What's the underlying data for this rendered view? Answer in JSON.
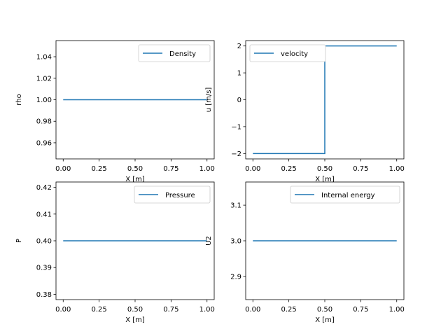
{
  "chart_data": [
    {
      "type": "line",
      "ylabel": "rho",
      "xlabel": "X [m]",
      "xlim": [
        -0.05,
        1.05
      ],
      "ylim": [
        0.945,
        1.055
      ],
      "xticks": [
        0.0,
        0.25,
        0.5,
        0.75,
        1.0
      ],
      "xtick_labels": [
        "0.00",
        "0.25",
        "0.50",
        "0.75",
        "1.00"
      ],
      "yticks": [
        0.96,
        0.98,
        1.0,
        1.02,
        1.04
      ],
      "ytick_labels": [
        "0.96",
        "0.98",
        "1.00",
        "1.02",
        "1.04"
      ],
      "legend_position": "upper right",
      "series": [
        {
          "name": "Density",
          "color": "#1f77b4",
          "x": [
            0.0,
            1.0
          ],
          "y": [
            1.0,
            1.0
          ]
        }
      ]
    },
    {
      "type": "line",
      "ylabel": "u [m/s]",
      "xlabel": "X [m]",
      "xlim": [
        -0.05,
        1.05
      ],
      "ylim": [
        -2.2,
        2.2
      ],
      "xticks": [
        0.0,
        0.25,
        0.5,
        0.75,
        1.0
      ],
      "xtick_labels": [
        "0.00",
        "0.25",
        "0.50",
        "0.75",
        "1.00"
      ],
      "yticks": [
        -2,
        -1,
        0,
        1,
        2
      ],
      "ytick_labels": [
        "−2",
        "−1",
        "0",
        "1",
        "2"
      ],
      "legend_position": "upper left",
      "series": [
        {
          "name": "velocity",
          "color": "#1f77b4",
          "x": [
            0.0,
            0.5,
            0.5,
            1.0
          ],
          "y": [
            -2,
            -2,
            2,
            2
          ]
        }
      ]
    },
    {
      "type": "line",
      "ylabel": "P",
      "xlabel": "X [m]",
      "xlim": [
        -0.05,
        1.05
      ],
      "ylim": [
        0.378,
        0.422
      ],
      "xticks": [
        0.0,
        0.25,
        0.5,
        0.75,
        1.0
      ],
      "xtick_labels": [
        "0.00",
        "0.25",
        "0.50",
        "0.75",
        "1.00"
      ],
      "yticks": [
        0.38,
        0.39,
        0.4,
        0.41,
        0.42
      ],
      "ytick_labels": [
        "0.38",
        "0.39",
        "0.40",
        "0.41",
        "0.42"
      ],
      "legend_position": "upper right",
      "series": [
        {
          "name": "Pressure",
          "color": "#1f77b4",
          "x": [
            0.0,
            1.0
          ],
          "y": [
            0.4,
            0.4
          ]
        }
      ]
    },
    {
      "type": "line",
      "ylabel": "U2",
      "xlabel": "X [m]",
      "xlim": [
        -0.05,
        1.05
      ],
      "ylim": [
        2.835,
        3.165
      ],
      "xticks": [
        0.0,
        0.25,
        0.5,
        0.75,
        1.0
      ],
      "xtick_labels": [
        "0.00",
        "0.25",
        "0.50",
        "0.75",
        "1.00"
      ],
      "yticks": [
        2.9,
        3.0,
        3.1
      ],
      "ytick_labels": [
        "2.9",
        "3.0",
        "3.1"
      ],
      "legend_position": "upper right",
      "series": [
        {
          "name": "Internal energy",
          "color": "#1f77b4",
          "x": [
            0.0,
            1.0
          ],
          "y": [
            3.0,
            3.0
          ]
        }
      ]
    }
  ]
}
